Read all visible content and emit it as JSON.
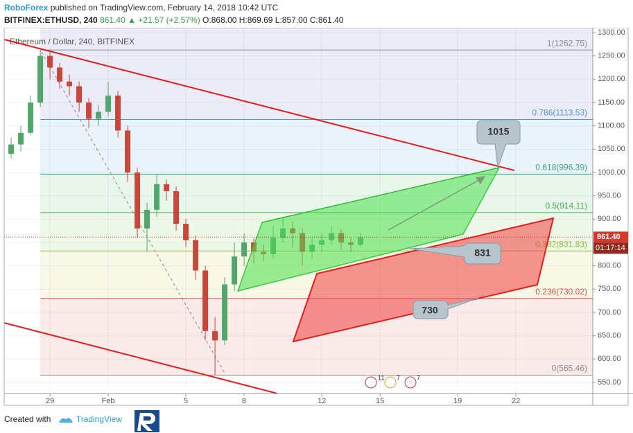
{
  "header": {
    "brand": "RoboForex",
    "published": "published on TradingView.com, February 14, 2018 10:42 UTC",
    "symbol": "BITFINEX:ETHUSD, 240",
    "quote": "861.40 ▲ +21.57 (+2.57%)",
    "ohlc": "O:868.00 H:869.69 L:857.00 C:861.40"
  },
  "chart_data": {
    "type": "candlestick",
    "title": "Ethereum / Dollar, 240, BITFINEX",
    "x": [
      -2.0,
      -1.5,
      -1.0,
      -0.5,
      0,
      0.5,
      1.0,
      1.5,
      2.0,
      2.5,
      3.0,
      3.5,
      4.0,
      4.5,
      5.0,
      5.5,
      6.0,
      6.5,
      7.0,
      7.5,
      8.0,
      8.5,
      9.0,
      9.5,
      10.0,
      10.5,
      11.0,
      11.5,
      12.0,
      12.5,
      13.0,
      13.5,
      14.0,
      14.5,
      15.0,
      15.5,
      16.0
    ],
    "open": [
      1040,
      1060,
      1085,
      1150,
      1250,
      1225,
      1195,
      1185,
      1150,
      1115,
      1130,
      1165,
      1090,
      1000,
      880,
      920,
      975,
      960,
      890,
      855,
      790,
      660,
      640,
      760,
      820,
      850,
      830,
      825,
      860,
      880,
      870,
      830,
      845,
      855,
      870,
      850,
      845
    ],
    "high": [
      1075,
      1100,
      1165,
      1262,
      1258,
      1235,
      1210,
      1195,
      1160,
      1145,
      1195,
      1175,
      1100,
      1010,
      935,
      995,
      985,
      970,
      900,
      865,
      800,
      690,
      775,
      850,
      870,
      860,
      845,
      885,
      905,
      895,
      880,
      860,
      870,
      885,
      878,
      860,
      869.69
    ],
    "low": [
      1030,
      1045,
      1080,
      1140,
      1200,
      1180,
      1165,
      1130,
      1095,
      1100,
      1120,
      1075,
      980,
      860,
      830,
      905,
      940,
      875,
      840,
      770,
      640,
      566,
      630,
      745,
      800,
      805,
      810,
      815,
      850,
      840,
      800,
      815,
      830,
      845,
      835,
      830,
      840
    ],
    "close": [
      1060,
      1085,
      1150,
      1250,
      1225,
      1195,
      1185,
      1150,
      1115,
      1130,
      1165,
      1090,
      1000,
      880,
      920,
      975,
      960,
      890,
      855,
      790,
      660,
      640,
      760,
      820,
      850,
      830,
      825,
      860,
      880,
      870,
      830,
      845,
      855,
      870,
      850,
      845,
      861.4
    ],
    "up_color": "#53a66b",
    "down_color": "#c8463a",
    "xlim": [
      -2.36,
      27.96
    ],
    "xticks": [
      {
        "value": 0,
        "label": "29"
      },
      {
        "value": 3,
        "label": "Feb"
      },
      {
        "value": 7,
        "label": "5"
      },
      {
        "value": 10,
        "label": "8"
      },
      {
        "value": 14,
        "label": "12"
      },
      {
        "value": 17,
        "label": "15"
      },
      {
        "value": 21,
        "label": "19"
      },
      {
        "value": 24,
        "label": "22"
      }
    ],
    "ylim": [
      526.2,
      1310.4
    ],
    "yticks": [
      {
        "value": 550,
        "label": "550.00"
      },
      {
        "value": 600,
        "label": "600.00"
      },
      {
        "value": 650,
        "label": "650.00"
      },
      {
        "value": 700,
        "label": "700.00"
      },
      {
        "value": 750,
        "label": "750.00"
      },
      {
        "value": 800,
        "label": "800.00"
      },
      {
        "value": 850,
        "label": "850.00"
      },
      {
        "value": 900,
        "label": "900.00"
      },
      {
        "value": 950,
        "label": "950.00"
      },
      {
        "value": 1000,
        "label": "1000.00"
      },
      {
        "value": 1050,
        "label": "1050.00"
      },
      {
        "value": 1100,
        "label": "1100.00"
      },
      {
        "value": 1150,
        "label": "1150.00"
      },
      {
        "value": 1200,
        "label": "1200.00"
      },
      {
        "value": 1250,
        "label": "1250.00"
      },
      {
        "value": 1300,
        "label": "1300.00"
      }
    ],
    "grid": true,
    "fib": [
      {
        "label": "1(1262.75)",
        "price": 1262.75,
        "color": "#8a8a9a",
        "fill": "#ececf8"
      },
      {
        "label": "0.786(1113.53)",
        "price": 1113.53,
        "color": "#4e9ac6",
        "fill": "#eaf3fa"
      },
      {
        "label": "0.618(996.39)",
        "price": 996.39,
        "color": "#3aa88c",
        "fill": "#e8f6ec"
      },
      {
        "label": "0.5(914.11)",
        "price": 914.11,
        "color": "#4caf50",
        "fill": "#eef8e8"
      },
      {
        "label": "0.382(831.83)",
        "price": 831.83,
        "color": "#9fb53a",
        "fill": "#f7f8e6"
      },
      {
        "label": "0.236(730.02)",
        "price": 730.02,
        "color": "#d9534f",
        "fill": "#fbeaea"
      },
      {
        "label": "0(565.46)",
        "price": 565.46,
        "color": "#8a8a8a",
        "fill": "#fbeaea"
      }
    ],
    "last_price": {
      "value": 861.4,
      "label": "861.40"
    },
    "countdown": "01:17:14",
    "annotations": [
      "1015",
      "831",
      "730"
    ],
    "events": [
      "11",
      "7",
      "7"
    ]
  },
  "footer": {
    "created": "Created with",
    "brand": "TradingView"
  }
}
